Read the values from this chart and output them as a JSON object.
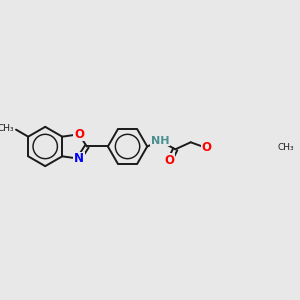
{
  "background_color": "#e8e8e8",
  "bond_color": "#1a1a1a",
  "bond_width": 1.4,
  "atom_colors": {
    "N": "#0000ff",
    "O": "#ff0000",
    "NH": "#4a9090",
    "C": "#1a1a1a"
  },
  "bg": "#e8e8e8"
}
